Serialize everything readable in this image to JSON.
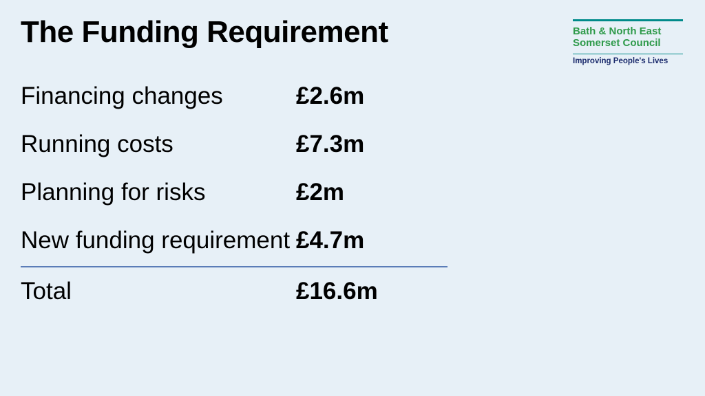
{
  "title": "The Funding Requirement",
  "logo": {
    "name_line1": "Bath & North East",
    "name_line2": "Somerset Council",
    "tagline": "Improving People's Lives"
  },
  "rows": [
    {
      "label": "Financing changes",
      "value": "£2.6m"
    },
    {
      "label": "Running costs",
      "value": "£7.3m"
    },
    {
      "label": "Planning for risks",
      "value": "£2m"
    },
    {
      "label": "New funding requirement",
      "value": "£4.7m"
    }
  ],
  "total": {
    "label": "Total",
    "value": "£16.6m"
  },
  "colors": {
    "background": "#e7f0f7",
    "divider": "#5b7db8",
    "logo_teal": "#008a8a",
    "logo_green": "#2e9a4a",
    "logo_navy": "#1a2a6c"
  }
}
